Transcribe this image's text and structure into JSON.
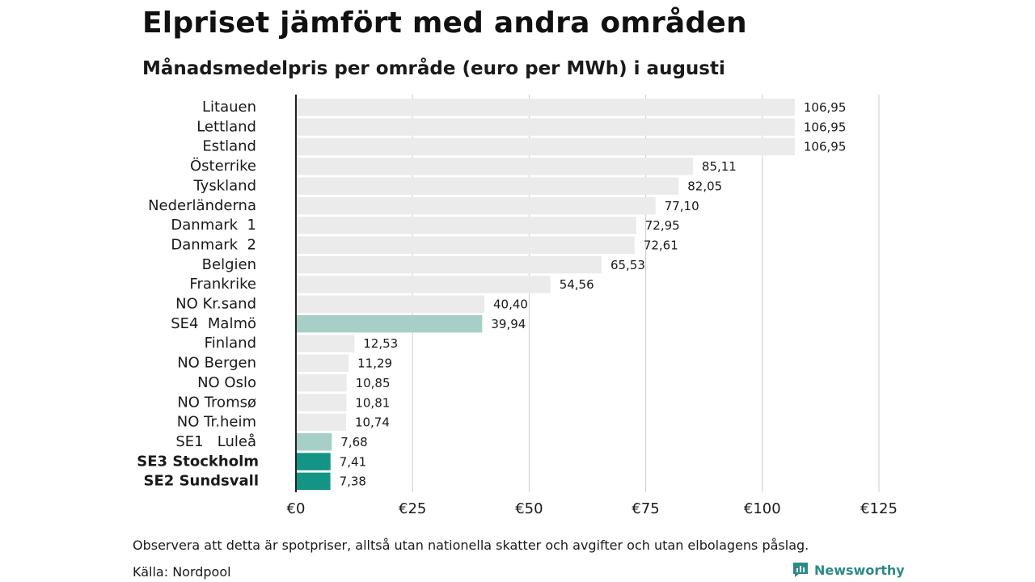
{
  "title": "Elpriset jämfört med andra områden",
  "subtitle": "Månadsmedelpris per område (euro per MWh) i augusti",
  "note": "Observera att detta är spotpriser, alltså utan nationella skatter och avgifter och utan elbolagens påslag.",
  "source": "Källa: Nordpool",
  "brand": {
    "name": "Newsworthy",
    "icon": "newsworthy-logo-icon",
    "color": "#2c8a86"
  },
  "colors": {
    "default_bar": "#ebebeb",
    "light_highlight": "#a6cfc8",
    "dark_highlight": "#149484",
    "grid": "#cccccc",
    "axis": "#222222"
  },
  "chart_data": {
    "type": "bar",
    "orientation": "horizontal",
    "title": "Elpriset jämfört med andra områden",
    "subtitle": "Månadsmedelpris per område (euro per MWh) i augusti",
    "xlabel": "",
    "ylabel": "",
    "xlim": [
      0,
      125
    ],
    "grid": true,
    "ticks": [
      {
        "value": 0,
        "label": "€0"
      },
      {
        "value": 25,
        "label": "€25"
      },
      {
        "value": 50,
        "label": "€50"
      },
      {
        "value": 75,
        "label": "€75"
      },
      {
        "value": 100,
        "label": "€100"
      },
      {
        "value": 125,
        "label": "€125"
      }
    ],
    "categories": [
      "Litauen",
      "Lettland",
      "Estland",
      "Österrike",
      "Tyskland",
      "Nederländerna",
      "Danmark  1",
      "Danmark  2",
      "Belgien",
      "Frankrike",
      "NO Kr.sand",
      "SE4  Malmö",
      "Finland",
      "NO Bergen",
      "NO Oslo",
      "NO Tromsø",
      "NO Tr.heim",
      "SE1   Luleå",
      "SE3 Stockholm",
      "SE2 Sundsvall"
    ],
    "values": [
      106.95,
      106.95,
      106.95,
      85.11,
      82.05,
      77.1,
      72.95,
      72.61,
      65.53,
      54.56,
      40.4,
      39.94,
      12.53,
      11.29,
      10.85,
      10.81,
      10.74,
      7.68,
      7.41,
      7.38
    ],
    "value_labels": [
      "106,95",
      "106,95",
      "106,95",
      "85,11",
      "82,05",
      "77,10",
      "72,95",
      "72,61",
      "65,53",
      "54,56",
      "40,40",
      "39,94",
      "12,53",
      "11,29",
      "10,85",
      "10,81",
      "10,74",
      "7,68",
      "7,41",
      "7,38"
    ],
    "highlight": [
      "none",
      "none",
      "none",
      "none",
      "none",
      "none",
      "none",
      "none",
      "none",
      "none",
      "none",
      "light",
      "none",
      "none",
      "none",
      "none",
      "none",
      "light",
      "dark",
      "dark"
    ],
    "bold_labels": [
      false,
      false,
      false,
      false,
      false,
      false,
      false,
      false,
      false,
      false,
      false,
      false,
      false,
      false,
      false,
      false,
      false,
      false,
      true,
      true
    ]
  }
}
